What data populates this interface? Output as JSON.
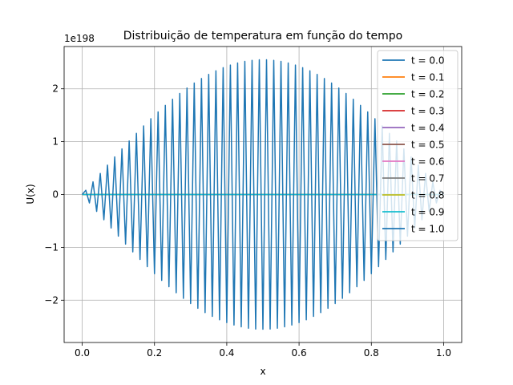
{
  "chart_data": {
    "type": "line",
    "title": "Distribuição de temperatura em função do tempo",
    "xlabel": "x",
    "ylabel": "U(x)",
    "y_offset_label": "1e198",
    "xlim": [
      -0.05,
      1.05
    ],
    "ylim": [
      -2.8,
      2.8
    ],
    "x_ticks": [
      0.0,
      0.2,
      0.4,
      0.6,
      0.8,
      1.0
    ],
    "x_tick_labels": [
      "0.0",
      "0.2",
      "0.4",
      "0.6",
      "0.8",
      "1.0"
    ],
    "y_ticks": [
      -2,
      -1,
      0,
      1,
      2
    ],
    "y_tick_labels": [
      "−2",
      "−1",
      "0",
      "1",
      "2"
    ],
    "grid": true,
    "legend_position": "upper-right",
    "x_range": [
      0.0,
      1.0
    ],
    "n_points": 101,
    "envelope_peak": 2.55,
    "series": [
      {
        "name": "t = 0.0",
        "color": "#1f77b4",
        "shape": "flat",
        "amplitude": 0
      },
      {
        "name": "t = 0.1",
        "color": "#ff7f0e",
        "shape": "flat",
        "amplitude": 0
      },
      {
        "name": "t = 0.2",
        "color": "#2ca02c",
        "shape": "flat",
        "amplitude": 0
      },
      {
        "name": "t = 0.3",
        "color": "#d62728",
        "shape": "flat",
        "amplitude": 0
      },
      {
        "name": "t = 0.4",
        "color": "#9467bd",
        "shape": "flat",
        "amplitude": 0
      },
      {
        "name": "t = 0.5",
        "color": "#8c564b",
        "shape": "flat",
        "amplitude": 0
      },
      {
        "name": "t = 0.6",
        "color": "#e377c2",
        "shape": "flat",
        "amplitude": 0
      },
      {
        "name": "t = 0.7",
        "color": "#7f7f7f",
        "shape": "flat",
        "amplitude": 0
      },
      {
        "name": "t = 0.8",
        "color": "#bcbd22",
        "shape": "flat",
        "amplitude": 0
      },
      {
        "name": "t = 0.9",
        "color": "#17becf",
        "shape": "flat",
        "amplitude": 0
      },
      {
        "name": "t = 1.0",
        "color": "#1f77b4",
        "shape": "alternating",
        "amplitude": 2.55
      }
    ]
  }
}
